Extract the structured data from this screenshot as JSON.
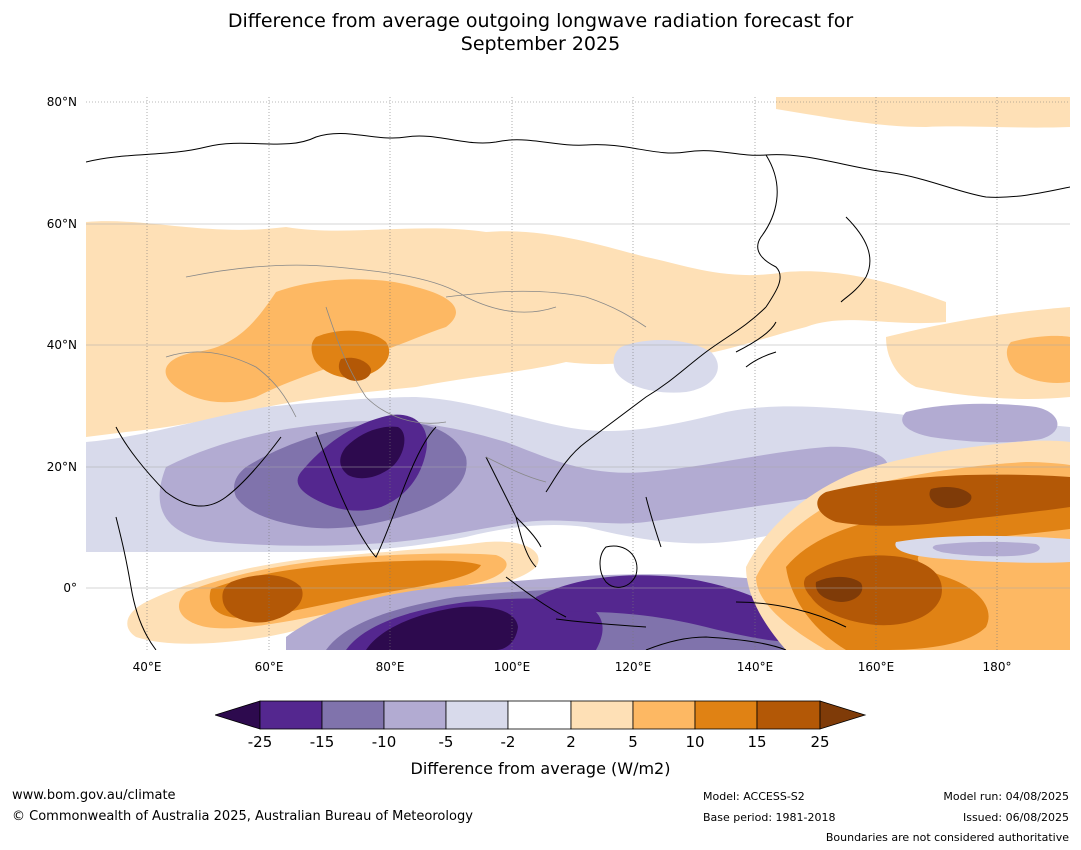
{
  "title": {
    "line1": "Difference from average outgoing longwave radiation forecast for",
    "line2": "September 2025"
  },
  "map": {
    "projection": "equirectangular",
    "lon_range": [
      30,
      192
    ],
    "lat_range": [
      -10,
      80
    ],
    "lat_labels": [
      "80°N",
      "60°N",
      "40°N",
      "20°N",
      "0°"
    ],
    "lon_labels": [
      "40°E",
      "60°E",
      "80°E",
      "100°E",
      "120°E",
      "140°E",
      "160°E",
      "180°"
    ],
    "grid": true
  },
  "legend": {
    "title": "Difference from average (W/m2)",
    "ticks": [
      "-25",
      "-15",
      "-10",
      "-5",
      "-2",
      "2",
      "5",
      "10",
      "15",
      "25"
    ],
    "colors": [
      "#2d0a4e",
      "#54278f",
      "#8073ac",
      "#b2abd2",
      "#d8daeb",
      "#ffffff",
      "#fee0b6",
      "#fdb863",
      "#e08214",
      "#b35806",
      "#7f3b08"
    ],
    "extend": "both"
  },
  "footer": {
    "website": "www.bom.gov.au/climate",
    "copyright": "© Commonwealth of Australia 2025, Australian Bureau of Meteorology",
    "model": "Model: ACCESS-S2",
    "base_period": "Base period: 1981-2018",
    "model_run": "Model run: 04/08/2025",
    "issued": "Issued: 06/08/2025",
    "disclaimer": "Boundaries are not considered authoritative"
  }
}
